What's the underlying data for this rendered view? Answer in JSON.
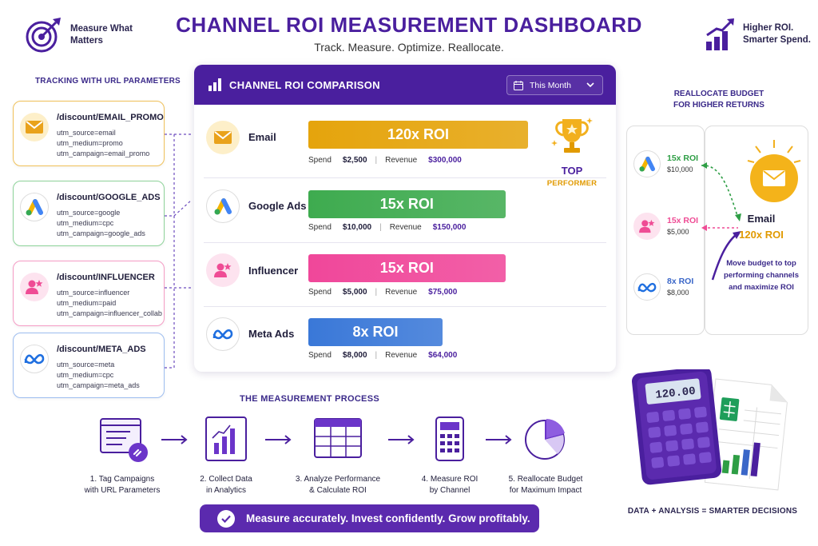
{
  "header": {
    "title": "CHANNEL ROI MEASUREMENT DASHBOARD",
    "subtitle": "Track. Measure. Optimize. Reallocate.",
    "left_tagline": "Measure What Matters",
    "right_tagline": "Higher ROI. Smarter Spend."
  },
  "tracking": {
    "title": "TRACKING WITH URL PARAMETERS",
    "cards": [
      {
        "path": "/discount/EMAIL_PROMO",
        "source": "utm_source=email",
        "medium": "utm_medium=promo",
        "campaign": "utm_campaign=email_promo",
        "icon": "envelope-icon",
        "color": "#e9a21b"
      },
      {
        "path": "/discount/GOOGLE_ADS",
        "source": "utm_source=google",
        "medium": "utm_medium=cpc",
        "campaign": "utm_campaign=google_ads",
        "icon": "google-ads-icon",
        "color": "#3eab4f"
      },
      {
        "path": "/discount/INFLUENCER",
        "source": "utm_source=influencer",
        "medium": "utm_medium=paid",
        "campaign": "utm_campaign=influencer_collab",
        "icon": "influencer-icon",
        "color": "#ef4c95"
      },
      {
        "path": "/discount/META_ADS",
        "source": "utm_source=meta",
        "medium": "utm_medium=cpc",
        "campaign": "utm_campaign=meta_ads",
        "icon": "meta-icon",
        "color": "#3a78d8"
      }
    ]
  },
  "roi_panel": {
    "title": "CHANNEL ROI COMPARISON",
    "period": "This Month",
    "spend_label": "Spend",
    "revenue_label": "Revenue",
    "top_label_1": "TOP",
    "top_label_2": "PERFORMER",
    "channels": [
      {
        "name": "Email",
        "roi_label": "120x ROI",
        "spend": "$2,500",
        "revenue": "$300,000",
        "roi": 120,
        "color": "#e5a40c"
      },
      {
        "name": "Google Ads",
        "roi_label": "15x ROI",
        "spend": "$10,000",
        "revenue": "$150,000",
        "roi": 15,
        "color": "#3eab4f"
      },
      {
        "name": "Influencer",
        "roi_label": "15x ROI",
        "spend": "$5,000",
        "revenue": "$75,000",
        "roi": 15,
        "color": "#f0479a"
      },
      {
        "name": "Meta Ads",
        "roi_label": "8x ROI",
        "spend": "$8,000",
        "revenue": "$64,000",
        "roi": 8,
        "color": "#3a78d8"
      }
    ]
  },
  "reallocate": {
    "title_line1": "REALLOCATE BUDGET",
    "title_line2": "FOR HIGHER RETURNS",
    "items": [
      {
        "roi": "15x ROI",
        "spend": "$10,000",
        "color": "#2e9e45"
      },
      {
        "roi": "15x ROI",
        "spend": "$5,000",
        "color": "#ef4c95"
      },
      {
        "roi": "8x ROI",
        "spend": "$8,000",
        "color": "#3a66c8"
      }
    ],
    "target_name": "Email",
    "target_roi": "120x ROI",
    "description": "Move budget to top performing channels and maximize ROI"
  },
  "process": {
    "title": "THE MEASUREMENT PROCESS",
    "steps": [
      {
        "line1": "1. Tag Campaigns",
        "line2": "with URL Parameters"
      },
      {
        "line1": "2. Collect Data",
        "line2": "in Analytics"
      },
      {
        "line1": "3. Analyze Performance",
        "line2": "& Calculate ROI"
      },
      {
        "line1": "4. Measure ROI",
        "line2": "by Channel"
      },
      {
        "line1": "5. Reallocate Budget",
        "line2": "for Maximum Impact"
      }
    ]
  },
  "cta": "Measure accurately. Invest confidently. Grow profitably.",
  "calculator_display": "120.00",
  "footer": "DATA + ANALYSIS = SMARTER DECISIONS"
}
